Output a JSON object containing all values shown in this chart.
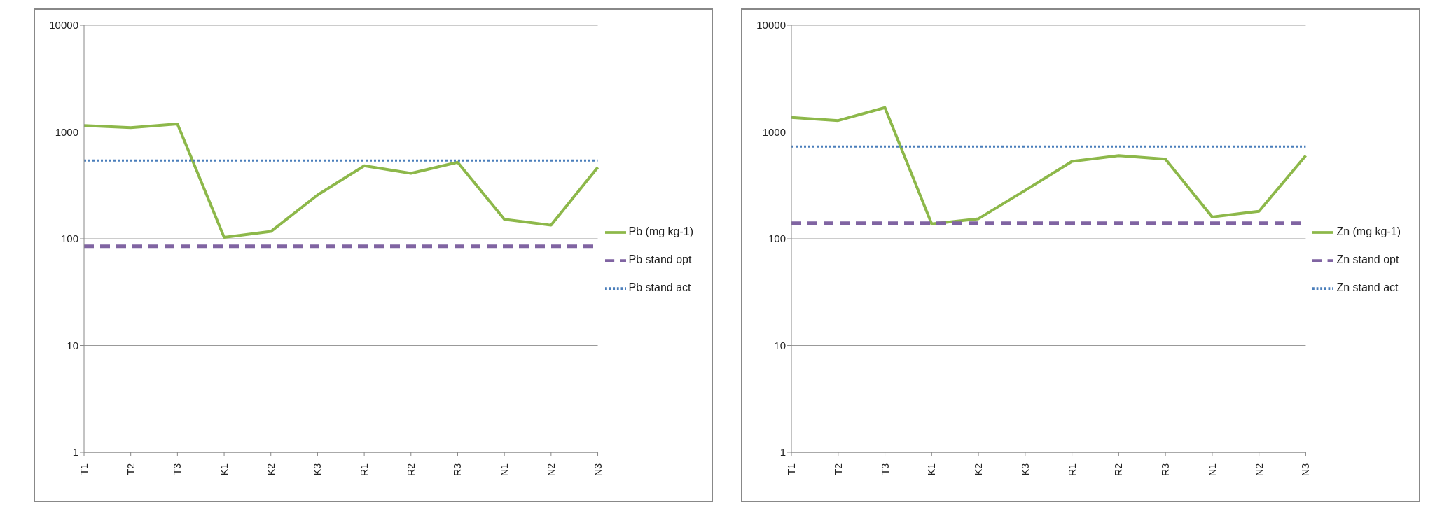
{
  "chart_data": [
    {
      "type": "line",
      "categories": [
        "T1",
        "T2",
        "T3",
        "K1",
        "K2",
        "K3",
        "R1",
        "R2",
        "R3",
        "N1",
        "N2",
        "N3"
      ],
      "log": "y",
      "ylim": [
        1,
        10000
      ],
      "yticks": [
        1,
        10,
        100,
        1000,
        10000
      ],
      "grid": "y",
      "legend": "right",
      "marker": "none",
      "series": [
        {
          "name": "Pb  (mg kg-1)",
          "color": "#8db84a",
          "line_style": "solid",
          "values": [
            1150,
            1100,
            1190,
            103,
            117,
            257,
            483,
            410,
            520,
            152,
            134,
            467
          ]
        },
        {
          "name": "Pb stand opt",
          "color": "#8064a2",
          "line_style": "dashed",
          "values": [
            85,
            85,
            85,
            85,
            85,
            85,
            85,
            85,
            85,
            85,
            85,
            85
          ]
        },
        {
          "name": "Pb stand act",
          "color": "#4a7ebb",
          "line_style": "dotted",
          "values": [
            540,
            540,
            540,
            540,
            540,
            540,
            540,
            540,
            540,
            540,
            540,
            540
          ]
        }
      ]
    },
    {
      "type": "line",
      "categories": [
        "T1",
        "T2",
        "T3",
        "K1",
        "K2",
        "K3",
        "R1",
        "R2",
        "R3",
        "N1",
        "N2",
        "N3"
      ],
      "log": "y",
      "ylim": [
        1,
        10000
      ],
      "yticks": [
        1,
        10,
        100,
        1000,
        10000
      ],
      "grid": "y",
      "legend": "right",
      "marker": "none",
      "series": [
        {
          "name": "Zn  (mg kg-1)",
          "color": "#8db84a",
          "line_style": "solid",
          "values": [
            1370,
            1280,
            1690,
            138,
            154,
            284,
            530,
            600,
            557,
            160,
            181,
            600
          ]
        },
        {
          "name": "Zn stand opt",
          "color": "#8064a2",
          "line_style": "dashed",
          "values": [
            140,
            140,
            140,
            140,
            140,
            140,
            140,
            140,
            140,
            140,
            140,
            140
          ]
        },
        {
          "name": "Zn stand act",
          "color": "#4a7ebb",
          "line_style": "dotted",
          "values": [
            730,
            730,
            730,
            730,
            730,
            730,
            730,
            730,
            730,
            730,
            730,
            730
          ]
        }
      ]
    }
  ]
}
